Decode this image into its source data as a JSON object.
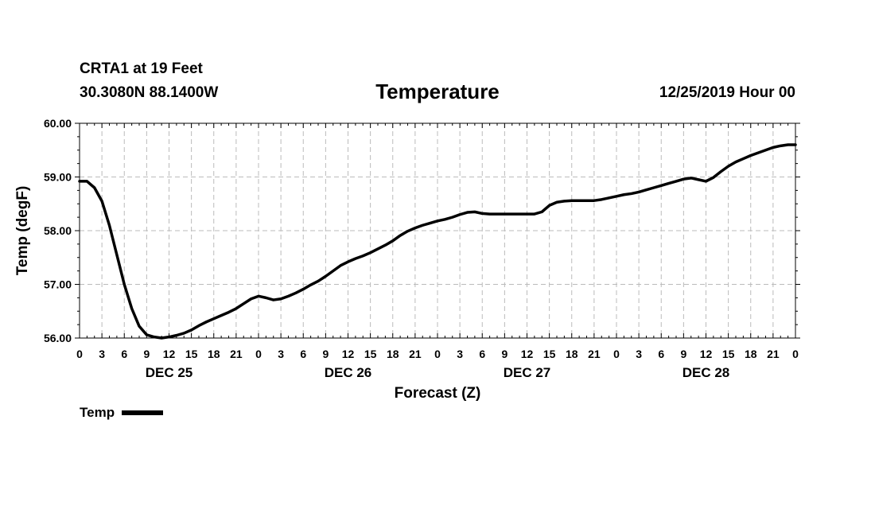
{
  "header": {
    "station": "CRTA1 at 19 Feet",
    "coords": "30.3080N 88.1400W",
    "title": "Temperature",
    "date": "12/25/2019 Hour 00"
  },
  "legend": {
    "label": "Temp",
    "color": "#000000"
  },
  "chart_data": {
    "type": "line",
    "title": "Temperature",
    "xlabel": "Forecast (Z)",
    "ylabel": "Temp (degF)",
    "x_unit": "forecast hour",
    "xlim": [
      0,
      96
    ],
    "ylim": [
      56,
      60
    ],
    "grid": true,
    "legend_position": "bottom-left",
    "y_ticks": [
      56,
      57,
      58,
      59,
      60
    ],
    "y_tick_labels": [
      "56.00",
      "57.00",
      "58.00",
      "59.00",
      "60.00"
    ],
    "x_ticks": [
      0,
      3,
      6,
      9,
      12,
      15,
      18,
      21,
      24,
      27,
      30,
      33,
      36,
      39,
      42,
      45,
      48,
      51,
      54,
      57,
      60,
      63,
      66,
      69,
      72,
      75,
      78,
      81,
      84,
      87,
      90,
      93,
      96
    ],
    "x_tick_labels": [
      "0",
      "3",
      "6",
      "9",
      "12",
      "15",
      "18",
      "21",
      "0",
      "3",
      "6",
      "9",
      "12",
      "15",
      "18",
      "21",
      "0",
      "3",
      "6",
      "9",
      "12",
      "15",
      "18",
      "21",
      "0",
      "3",
      "6",
      "9",
      "12",
      "15",
      "18",
      "21",
      "0"
    ],
    "day_labels": [
      {
        "label": "DEC 25",
        "hour": 12
      },
      {
        "label": "DEC 26",
        "hour": 36
      },
      {
        "label": "DEC 27",
        "hour": 60
      },
      {
        "label": "DEC 28",
        "hour": 84
      }
    ],
    "series": [
      {
        "name": "Temp",
        "color": "#000000",
        "x": [
          0,
          1,
          2,
          3,
          4,
          5,
          6,
          7,
          8,
          9,
          10,
          11,
          12,
          13,
          14,
          15,
          16,
          17,
          18,
          19,
          20,
          21,
          22,
          23,
          24,
          25,
          26,
          27,
          28,
          29,
          30,
          31,
          32,
          33,
          34,
          35,
          36,
          37,
          38,
          39,
          40,
          41,
          42,
          43,
          44,
          45,
          46,
          47,
          48,
          49,
          50,
          51,
          52,
          53,
          54,
          55,
          56,
          57,
          58,
          59,
          60,
          61,
          62,
          63,
          64,
          65,
          66,
          67,
          68,
          69,
          70,
          71,
          72,
          73,
          74,
          75,
          76,
          77,
          78,
          79,
          80,
          81,
          82,
          83,
          84,
          85,
          86,
          87,
          88,
          89,
          90,
          91,
          92,
          93,
          94,
          95,
          96
        ],
        "y": [
          58.92,
          58.92,
          58.8,
          58.55,
          58.1,
          57.55,
          57.0,
          56.55,
          56.22,
          56.06,
          56.02,
          56.0,
          56.02,
          56.05,
          56.09,
          56.15,
          56.23,
          56.3,
          56.36,
          56.42,
          56.48,
          56.55,
          56.64,
          56.73,
          56.78,
          56.75,
          56.71,
          56.73,
          56.78,
          56.84,
          56.91,
          56.99,
          57.06,
          57.15,
          57.25,
          57.35,
          57.42,
          57.48,
          57.53,
          57.59,
          57.66,
          57.73,
          57.81,
          57.91,
          57.99,
          58.05,
          58.1,
          58.14,
          58.18,
          58.21,
          58.25,
          58.3,
          58.34,
          58.35,
          58.32,
          58.31,
          58.31,
          58.31,
          58.31,
          58.31,
          58.31,
          58.31,
          58.35,
          58.47,
          58.53,
          58.55,
          58.56,
          58.56,
          58.56,
          58.56,
          58.58,
          58.61,
          58.64,
          58.67,
          58.69,
          58.72,
          58.76,
          58.8,
          58.84,
          58.88,
          58.92,
          58.96,
          58.98,
          58.95,
          58.92,
          58.99,
          59.1,
          59.2,
          59.28,
          59.34,
          59.4,
          59.45,
          59.5,
          59.55,
          59.58,
          59.6,
          59.6
        ]
      }
    ]
  }
}
